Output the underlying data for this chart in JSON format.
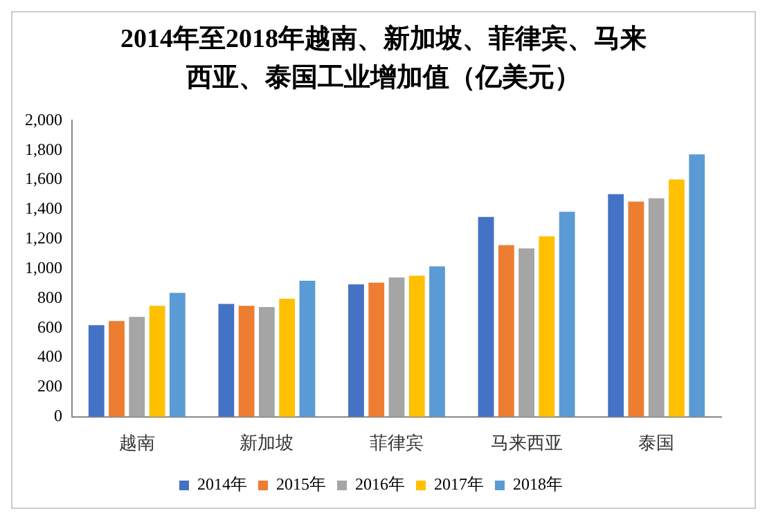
{
  "chart_data": {
    "type": "bar",
    "title": "2014年至2018年越南、新加坡、菲律宾、马来西亚、泰国工业增加值（亿美元）",
    "categories": [
      "越南",
      "新加坡",
      "菲律宾",
      "马来西亚",
      "泰国"
    ],
    "series": [
      {
        "name": "2014年",
        "color": "#4472c4",
        "values": [
          619,
          762,
          894,
          1350,
          1503
        ]
      },
      {
        "name": "2015年",
        "color": "#ed7d31",
        "values": [
          647,
          750,
          906,
          1159,
          1453
        ]
      },
      {
        "name": "2016年",
        "color": "#a5a5a5",
        "values": [
          675,
          741,
          941,
          1137,
          1475
        ]
      },
      {
        "name": "2017年",
        "color": "#ffc000",
        "values": [
          750,
          797,
          953,
          1219,
          1603
        ]
      },
      {
        "name": "2018年",
        "color": "#5b9bd5",
        "values": [
          837,
          919,
          1016,
          1384,
          1772
        ]
      }
    ],
    "ylim": [
      0,
      2000
    ],
    "yticks": [
      {
        "value": 0,
        "label": "0"
      },
      {
        "value": 200,
        "label": "200"
      },
      {
        "value": 400,
        "label": "400"
      },
      {
        "value": 600,
        "label": "600"
      },
      {
        "value": 800,
        "label": "800"
      },
      {
        "value": 1000,
        "label": "1,000"
      },
      {
        "value": 1200,
        "label": "1,200"
      },
      {
        "value": 1400,
        "label": "1,400"
      },
      {
        "value": 1600,
        "label": "1,600"
      },
      {
        "value": 1800,
        "label": "1,800"
      },
      {
        "value": 2000,
        "label": "2,000"
      }
    ],
    "grid": false,
    "legend": "bottom"
  }
}
